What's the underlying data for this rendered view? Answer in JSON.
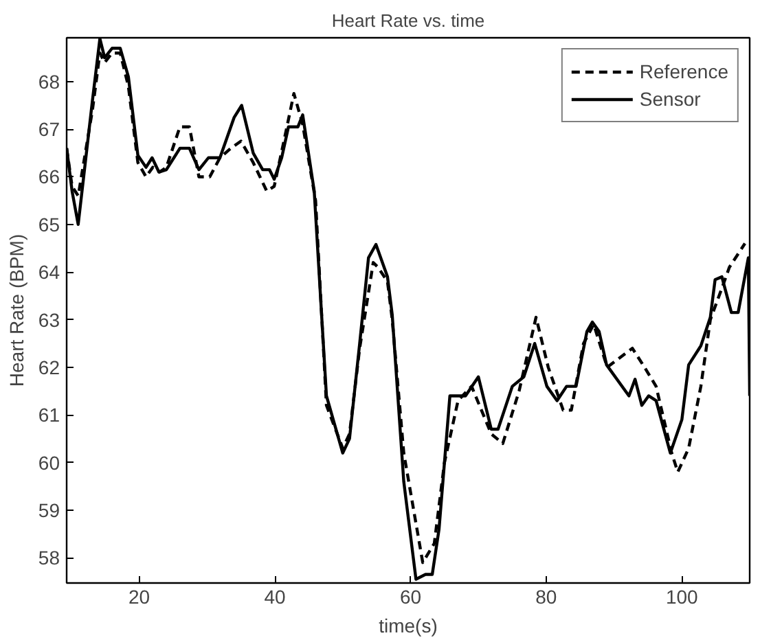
{
  "chart_data": {
    "type": "line",
    "title": "Heart Rate vs. time",
    "xlabel": "time(s)",
    "ylabel": "Heart Rate (BPM)",
    "xlim": [
      9.3,
      110
    ],
    "ylim": [
      57.47,
      68.92
    ],
    "xticks": [
      20,
      40,
      60,
      80,
      100
    ],
    "yticks": [
      58,
      59,
      60,
      61,
      62,
      63,
      64,
      65,
      66,
      67,
      68
    ],
    "grid": false,
    "legend": "top right",
    "marker": "none",
    "series": [
      {
        "name": "Reference",
        "color": "#000000",
        "line_style": "dashed",
        "x": [
          9.3,
          10.1,
          11,
          13.1,
          14.2,
          14.9,
          16,
          17.2,
          18.4,
          19.8,
          21,
          22,
          23,
          24,
          26,
          27.4,
          28.8,
          30.4,
          31.9,
          33.5,
          35,
          36.8,
          38.8,
          39.9,
          41.7,
          42.8,
          44.1,
          46,
          47.6,
          50,
          51,
          52.5,
          54.5,
          55.2,
          56.6,
          57.3,
          59,
          61.8,
          63.5,
          65,
          67,
          69,
          71.9,
          73.6,
          76,
          78.5,
          80.3,
          82.5,
          83.7,
          85.5,
          87,
          89,
          92.7,
          94.5,
          96.2,
          98.5,
          99.4,
          101,
          102.8,
          104.2,
          106,
          107,
          109.3
        ],
        "values": [
          66.6,
          65.8,
          65.6,
          67.4,
          68.6,
          68.4,
          68.6,
          68.6,
          67.9,
          66.3,
          66.0,
          66.2,
          66.1,
          66.2,
          67.05,
          67.05,
          66.0,
          66.0,
          66.4,
          66.6,
          66.75,
          66.3,
          65.7,
          65.8,
          67.0,
          67.75,
          67.1,
          65.5,
          61.2,
          60.3,
          60.6,
          62.4,
          64.2,
          64.1,
          63.8,
          63.0,
          60.2,
          57.9,
          58.3,
          60.0,
          61.3,
          61.6,
          60.6,
          60.4,
          61.5,
          63.05,
          62.0,
          61.1,
          61.1,
          62.5,
          62.9,
          62.0,
          62.4,
          62.0,
          61.6,
          60.2,
          59.8,
          60.3,
          61.6,
          63.0,
          63.7,
          64.1,
          64.6
        ]
      },
      {
        "name": "Sensor",
        "color": "#000000",
        "line_style": "solid",
        "x": [
          9.3,
          10.1,
          11,
          13.1,
          14.2,
          14.9,
          16,
          17.2,
          18.4,
          19.8,
          21,
          21.9,
          22.9,
          24,
          26,
          27.4,
          28.8,
          30.2,
          31.9,
          34,
          35.1,
          36.8,
          38.2,
          39.2,
          39.9,
          41,
          42,
          43.4,
          44.1,
          45.8,
          47.6,
          50,
          51,
          52.5,
          53.8,
          54.9,
          56.6,
          57.3,
          59,
          60.8,
          62.2,
          63.2,
          64.2,
          65.8,
          68.1,
          70,
          71.9,
          72.9,
          75,
          76.7,
          78.3,
          80.1,
          81.6,
          83,
          84.4,
          86,
          86.8,
          87.8,
          88.9,
          92.2,
          93.1,
          94.1,
          95.1,
          96.2,
          98.3,
          100,
          101,
          102.8,
          104.2,
          104.9,
          105.9,
          107.3,
          108.3,
          109.8,
          110
        ],
        "values": [
          66.6,
          65.7,
          65.0,
          67.6,
          68.9,
          68.5,
          68.7,
          68.7,
          68.1,
          66.45,
          66.2,
          66.4,
          66.1,
          66.15,
          66.6,
          66.6,
          66.15,
          66.4,
          66.4,
          67.25,
          67.5,
          66.5,
          66.15,
          66.15,
          65.95,
          66.4,
          67.05,
          67.05,
          67.3,
          65.7,
          61.4,
          60.2,
          60.5,
          62.5,
          64.3,
          64.58,
          63.9,
          63.1,
          59.6,
          57.55,
          57.65,
          57.65,
          58.6,
          61.4,
          61.4,
          61.8,
          60.7,
          60.7,
          61.6,
          61.8,
          62.5,
          61.6,
          61.3,
          61.6,
          61.6,
          62.75,
          62.95,
          62.75,
          62.05,
          61.4,
          61.75,
          61.2,
          61.4,
          61.3,
          60.2,
          60.9,
          62.05,
          62.45,
          63.05,
          63.84,
          63.9,
          63.15,
          63.15,
          64.3,
          61.4
        ]
      }
    ]
  }
}
